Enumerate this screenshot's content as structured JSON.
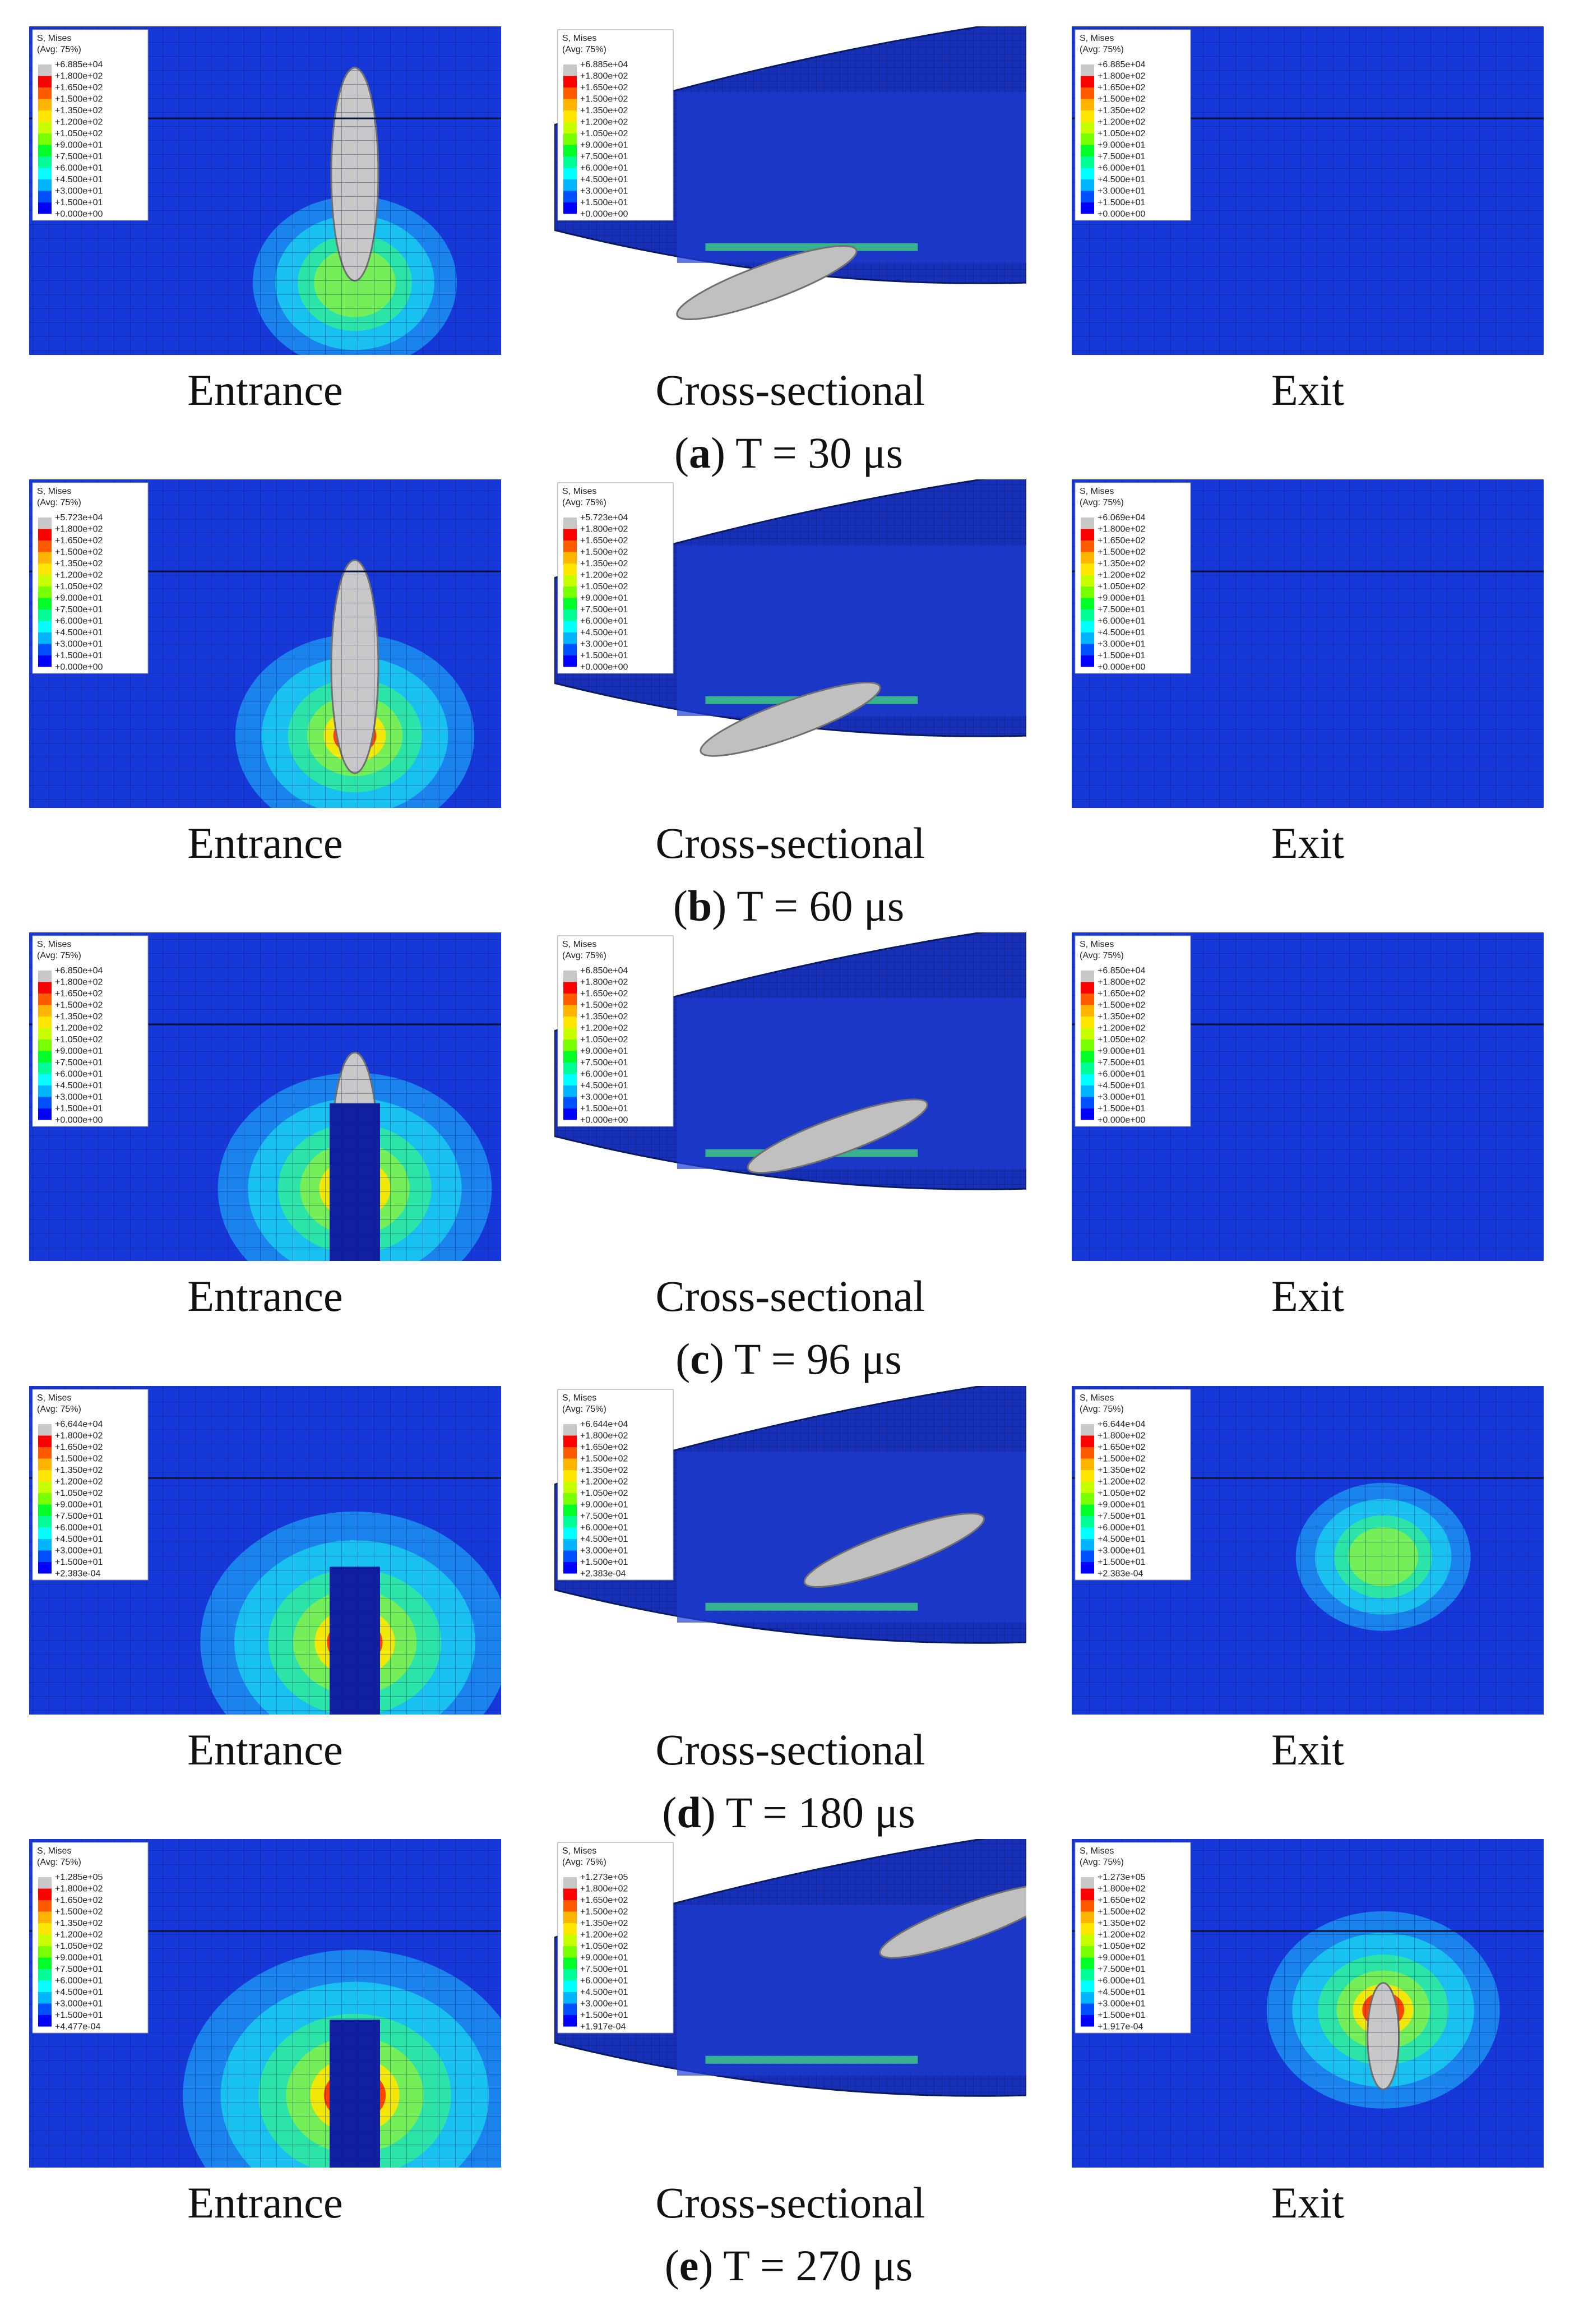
{
  "rows": [
    {
      "caption": {
        "open": "(",
        "letter": "a",
        "rest": ") T = 30 μs"
      },
      "panels": [
        {
          "label": "Entrance",
          "legend": {
            "title": "S, Mises",
            "subtitle": "(Avg: 75%)",
            "values": [
              "+6.885e+04",
              "+1.800e+02",
              "+1.650e+02",
              "+1.500e+02",
              "+1.350e+02",
              "+1.200e+02",
              "+1.050e+02",
              "+9.000e+01",
              "+7.500e+01",
              "+6.000e+01",
              "+4.500e+01",
              "+3.000e+01",
              "+1.500e+01",
              "+0.000e+00"
            ]
          }
        },
        {
          "label": "Cross-sectional",
          "legend": {
            "title": "S, Mises",
            "subtitle": "(Avg: 75%)",
            "values": [
              "+6.885e+04",
              "+1.800e+02",
              "+1.650e+02",
              "+1.500e+02",
              "+1.350e+02",
              "+1.200e+02",
              "+1.050e+02",
              "+9.000e+01",
              "+7.500e+01",
              "+6.000e+01",
              "+4.500e+01",
              "+3.000e+01",
              "+1.500e+01",
              "+0.000e+00"
            ]
          }
        },
        {
          "label": "Exit",
          "legend": {
            "title": "S, Mises",
            "subtitle": "(Avg: 75%)",
            "values": [
              "+6.885e+04",
              "+1.800e+02",
              "+1.650e+02",
              "+1.500e+02",
              "+1.350e+02",
              "+1.200e+02",
              "+1.050e+02",
              "+9.000e+01",
              "+7.500e+01",
              "+6.000e+01",
              "+4.500e+01",
              "+3.000e+01",
              "+1.500e+01",
              "+0.000e+00"
            ]
          }
        }
      ]
    },
    {
      "caption": {
        "open": "(",
        "letter": "b",
        "rest": ") T = 60 μs"
      },
      "panels": [
        {
          "label": "Entrance",
          "legend": {
            "title": "S, Mises",
            "subtitle": "(Avg: 75%)",
            "values": [
              "+5.723e+04",
              "+1.800e+02",
              "+1.650e+02",
              "+1.500e+02",
              "+1.350e+02",
              "+1.200e+02",
              "+1.050e+02",
              "+9.000e+01",
              "+7.500e+01",
              "+6.000e+01",
              "+4.500e+01",
              "+3.000e+01",
              "+1.500e+01",
              "+0.000e+00"
            ]
          }
        },
        {
          "label": "Cross-sectional",
          "legend": {
            "title": "S, Mises",
            "subtitle": "(Avg: 75%)",
            "values": [
              "+5.723e+04",
              "+1.800e+02",
              "+1.650e+02",
              "+1.500e+02",
              "+1.350e+02",
              "+1.200e+02",
              "+1.050e+02",
              "+9.000e+01",
              "+7.500e+01",
              "+6.000e+01",
              "+4.500e+01",
              "+3.000e+01",
              "+1.500e+01",
              "+0.000e+00"
            ]
          }
        },
        {
          "label": "Exit",
          "legend": {
            "title": "S, Mises",
            "subtitle": "(Avg: 75%)",
            "values": [
              "+6.069e+04",
              "+1.800e+02",
              "+1.650e+02",
              "+1.500e+02",
              "+1.350e+02",
              "+1.200e+02",
              "+1.050e+02",
              "+9.000e+01",
              "+7.500e+01",
              "+6.000e+01",
              "+4.500e+01",
              "+3.000e+01",
              "+1.500e+01",
              "+0.000e+00"
            ]
          }
        }
      ]
    },
    {
      "caption": {
        "open": "(",
        "letter": "c",
        "rest": ") T = 96 μs"
      },
      "panels": [
        {
          "label": "Entrance",
          "legend": {
            "title": "S, Mises",
            "subtitle": "(Avg: 75%)",
            "values": [
              "+6.850e+04",
              "+1.800e+02",
              "+1.650e+02",
              "+1.500e+02",
              "+1.350e+02",
              "+1.200e+02",
              "+1.050e+02",
              "+9.000e+01",
              "+7.500e+01",
              "+6.000e+01",
              "+4.500e+01",
              "+3.000e+01",
              "+1.500e+01",
              "+0.000e+00"
            ]
          }
        },
        {
          "label": "Cross-sectional",
          "legend": {
            "title": "S, Mises",
            "subtitle": "(Avg: 75%)",
            "values": [
              "+6.850e+04",
              "+1.800e+02",
              "+1.650e+02",
              "+1.500e+02",
              "+1.350e+02",
              "+1.200e+02",
              "+1.050e+02",
              "+9.000e+01",
              "+7.500e+01",
              "+6.000e+01",
              "+4.500e+01",
              "+3.000e+01",
              "+1.500e+01",
              "+0.000e+00"
            ]
          }
        },
        {
          "label": "Exit",
          "legend": {
            "title": "S, Mises",
            "subtitle": "(Avg: 75%)",
            "values": [
              "+6.850e+04",
              "+1.800e+02",
              "+1.650e+02",
              "+1.500e+02",
              "+1.350e+02",
              "+1.200e+02",
              "+1.050e+02",
              "+9.000e+01",
              "+7.500e+01",
              "+6.000e+01",
              "+4.500e+01",
              "+3.000e+01",
              "+1.500e+01",
              "+0.000e+00"
            ]
          }
        }
      ]
    },
    {
      "caption": {
        "open": "(",
        "letter": "d",
        "rest": ") T = 180 μs"
      },
      "panels": [
        {
          "label": "Entrance",
          "legend": {
            "title": "S, Mises",
            "subtitle": "(Avg: 75%)",
            "values": [
              "+6.644e+04",
              "+1.800e+02",
              "+1.650e+02",
              "+1.500e+02",
              "+1.350e+02",
              "+1.200e+02",
              "+1.050e+02",
              "+9.000e+01",
              "+7.500e+01",
              "+6.000e+01",
              "+4.500e+01",
              "+3.000e+01",
              "+1.500e+01",
              "+2.383e-04"
            ]
          }
        },
        {
          "label": "Cross-sectional",
          "legend": {
            "title": "S, Mises",
            "subtitle": "(Avg: 75%)",
            "values": [
              "+6.644e+04",
              "+1.800e+02",
              "+1.650e+02",
              "+1.500e+02",
              "+1.350e+02",
              "+1.200e+02",
              "+1.050e+02",
              "+9.000e+01",
              "+7.500e+01",
              "+6.000e+01",
              "+4.500e+01",
              "+3.000e+01",
              "+1.500e+01",
              "+2.383e-04"
            ]
          }
        },
        {
          "label": "Exit",
          "legend": {
            "title": "S, Mises",
            "subtitle": "(Avg: 75%)",
            "values": [
              "+6.644e+04",
              "+1.800e+02",
              "+1.650e+02",
              "+1.500e+02",
              "+1.350e+02",
              "+1.200e+02",
              "+1.050e+02",
              "+9.000e+01",
              "+7.500e+01",
              "+6.000e+01",
              "+4.500e+01",
              "+3.000e+01",
              "+1.500e+01",
              "+2.383e-04"
            ]
          }
        }
      ]
    },
    {
      "caption": {
        "open": "(",
        "letter": "e",
        "rest": ") T = 270 μs"
      },
      "panels": [
        {
          "label": "Entrance",
          "legend": {
            "title": "S, Mises",
            "subtitle": "(Avg: 75%)",
            "values": [
              "+1.285e+05",
              "+1.800e+02",
              "+1.650e+02",
              "+1.500e+02",
              "+1.350e+02",
              "+1.200e+02",
              "+1.050e+02",
              "+9.000e+01",
              "+7.500e+01",
              "+6.000e+01",
              "+4.500e+01",
              "+3.000e+01",
              "+1.500e+01",
              "+4.477e-04"
            ]
          }
        },
        {
          "label": "Cross-sectional",
          "legend": {
            "title": "S, Mises",
            "subtitle": "(Avg: 75%)",
            "values": [
              "+1.273e+05",
              "+1.800e+02",
              "+1.650e+02",
              "+1.500e+02",
              "+1.350e+02",
              "+1.200e+02",
              "+1.050e+02",
              "+9.000e+01",
              "+7.500e+01",
              "+6.000e+01",
              "+4.500e+01",
              "+3.000e+01",
              "+1.500e+01",
              "+1.917e-04"
            ]
          }
        },
        {
          "label": "Exit",
          "legend": {
            "title": "S, Mises",
            "subtitle": "(Avg: 75%)",
            "values": [
              "+1.273e+05",
              "+1.800e+02",
              "+1.650e+02",
              "+1.500e+02",
              "+1.350e+02",
              "+1.200e+02",
              "+1.050e+02",
              "+9.000e+01",
              "+7.500e+01",
              "+6.000e+01",
              "+4.500e+01",
              "+3.000e+01",
              "+1.500e+01",
              "+1.917e-04"
            ]
          }
        }
      ]
    }
  ]
}
